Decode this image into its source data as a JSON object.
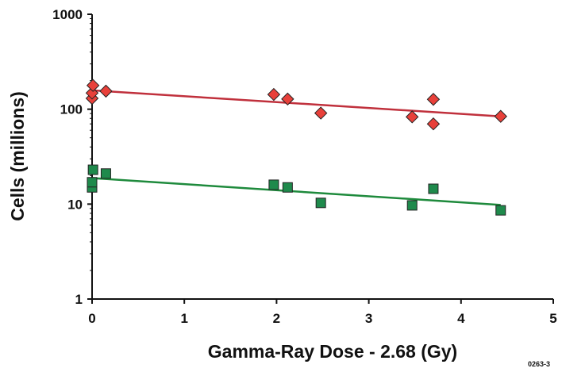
{
  "chart_data": {
    "type": "scatter",
    "title": "",
    "xlabel": "Gamma-Ray Dose - 2.68 (Gy)",
    "ylabel": "Cells (millions)",
    "x_scale": "linear",
    "y_scale": "log",
    "xlim": [
      0,
      5
    ],
    "ylim": [
      1,
      1000
    ],
    "x_ticks": [
      0,
      1,
      2,
      3,
      4,
      5
    ],
    "x_tick_labels": [
      "0",
      "1",
      "2",
      "3",
      "4",
      "5"
    ],
    "y_ticks": [
      1,
      10,
      100,
      1000
    ],
    "y_tick_labels": [
      "1",
      "10",
      "100",
      "1000"
    ],
    "grid": false,
    "legend": "none",
    "figure_code": "0263-3",
    "series": [
      {
        "marker": "diamond",
        "color": "#e8403a",
        "points": [
          {
            "x": 0.0,
            "y": 130
          },
          {
            "x": 0.0,
            "y": 148
          },
          {
            "x": 0.01,
            "y": 178
          },
          {
            "x": 0.15,
            "y": 155
          },
          {
            "x": 1.97,
            "y": 143
          },
          {
            "x": 2.12,
            "y": 128
          },
          {
            "x": 2.48,
            "y": 91
          },
          {
            "x": 3.47,
            "y": 83
          },
          {
            "x": 3.7,
            "y": 127
          },
          {
            "x": 3.7,
            "y": 70
          },
          {
            "x": 4.43,
            "y": 84
          }
        ],
        "fit_line": {
          "color": "#c0303c",
          "x": [
            0,
            4.43
          ],
          "y": [
            158,
            84
          ]
        }
      },
      {
        "marker": "square",
        "color": "#1f8a4c",
        "points": [
          {
            "x": 0.0,
            "y": 15
          },
          {
            "x": 0.0,
            "y": 17
          },
          {
            "x": 0.01,
            "y": 23
          },
          {
            "x": 0.15,
            "y": 21
          },
          {
            "x": 1.97,
            "y": 16
          },
          {
            "x": 2.12,
            "y": 15
          },
          {
            "x": 2.48,
            "y": 10.3
          },
          {
            "x": 3.47,
            "y": 9.7
          },
          {
            "x": 3.7,
            "y": 14.5
          },
          {
            "x": 4.43,
            "y": 8.6
          }
        ],
        "fit_line": {
          "color": "#1e8a3c",
          "x": [
            0,
            4.43
          ],
          "y": [
            18.8,
            9.8
          ]
        }
      }
    ]
  }
}
